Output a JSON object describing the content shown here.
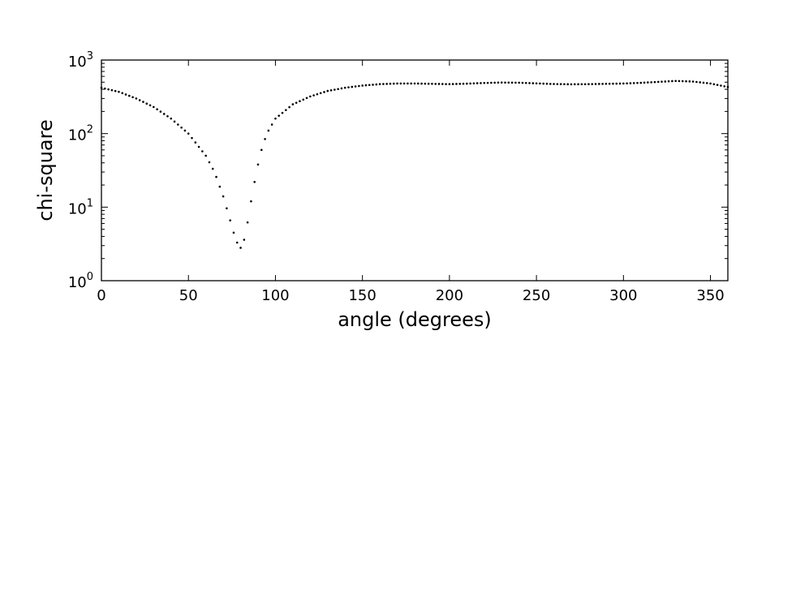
{
  "chart_data": {
    "type": "scatter",
    "xlabel": "angle (degrees)",
    "ylabel": "chi-square",
    "xlim": [
      0,
      360
    ],
    "ylim": [
      1,
      1000
    ],
    "yscale": "log",
    "grid": false,
    "marker_color": "#000000",
    "x_ticks": [
      0,
      50,
      100,
      150,
      200,
      250,
      300,
      350
    ],
    "x_tick_labels": [
      "0",
      "50",
      "100",
      "150",
      "200",
      "250",
      "300",
      "350"
    ],
    "y_ticks": [
      1,
      10,
      100,
      1000
    ],
    "y_tick_labels": [
      {
        "base": "10",
        "exp": "0"
      },
      {
        "base": "10",
        "exp": "1"
      },
      {
        "base": "10",
        "exp": "2"
      },
      {
        "base": "10",
        "exp": "3"
      }
    ],
    "anchors": {
      "x": [
        0,
        10,
        20,
        30,
        40,
        50,
        60,
        65,
        70,
        73,
        76,
        78,
        80,
        82,
        84,
        86,
        88,
        90,
        92,
        95,
        100,
        110,
        120,
        130,
        140,
        150,
        160,
        170,
        180,
        190,
        200,
        210,
        220,
        230,
        240,
        250,
        260,
        270,
        280,
        290,
        300,
        310,
        320,
        330,
        340,
        350,
        360
      ],
      "y": [
        420,
        370,
        300,
        230,
        160,
        100,
        50,
        30,
        14,
        8,
        4.5,
        3.3,
        2.8,
        3.6,
        6.2,
        12,
        22,
        38,
        60,
        100,
        160,
        250,
        320,
        380,
        420,
        450,
        470,
        480,
        480,
        475,
        470,
        478,
        488,
        495,
        492,
        482,
        472,
        468,
        470,
        475,
        480,
        490,
        505,
        520,
        510,
        480,
        430
      ]
    },
    "sample_step_degrees": 2
  }
}
